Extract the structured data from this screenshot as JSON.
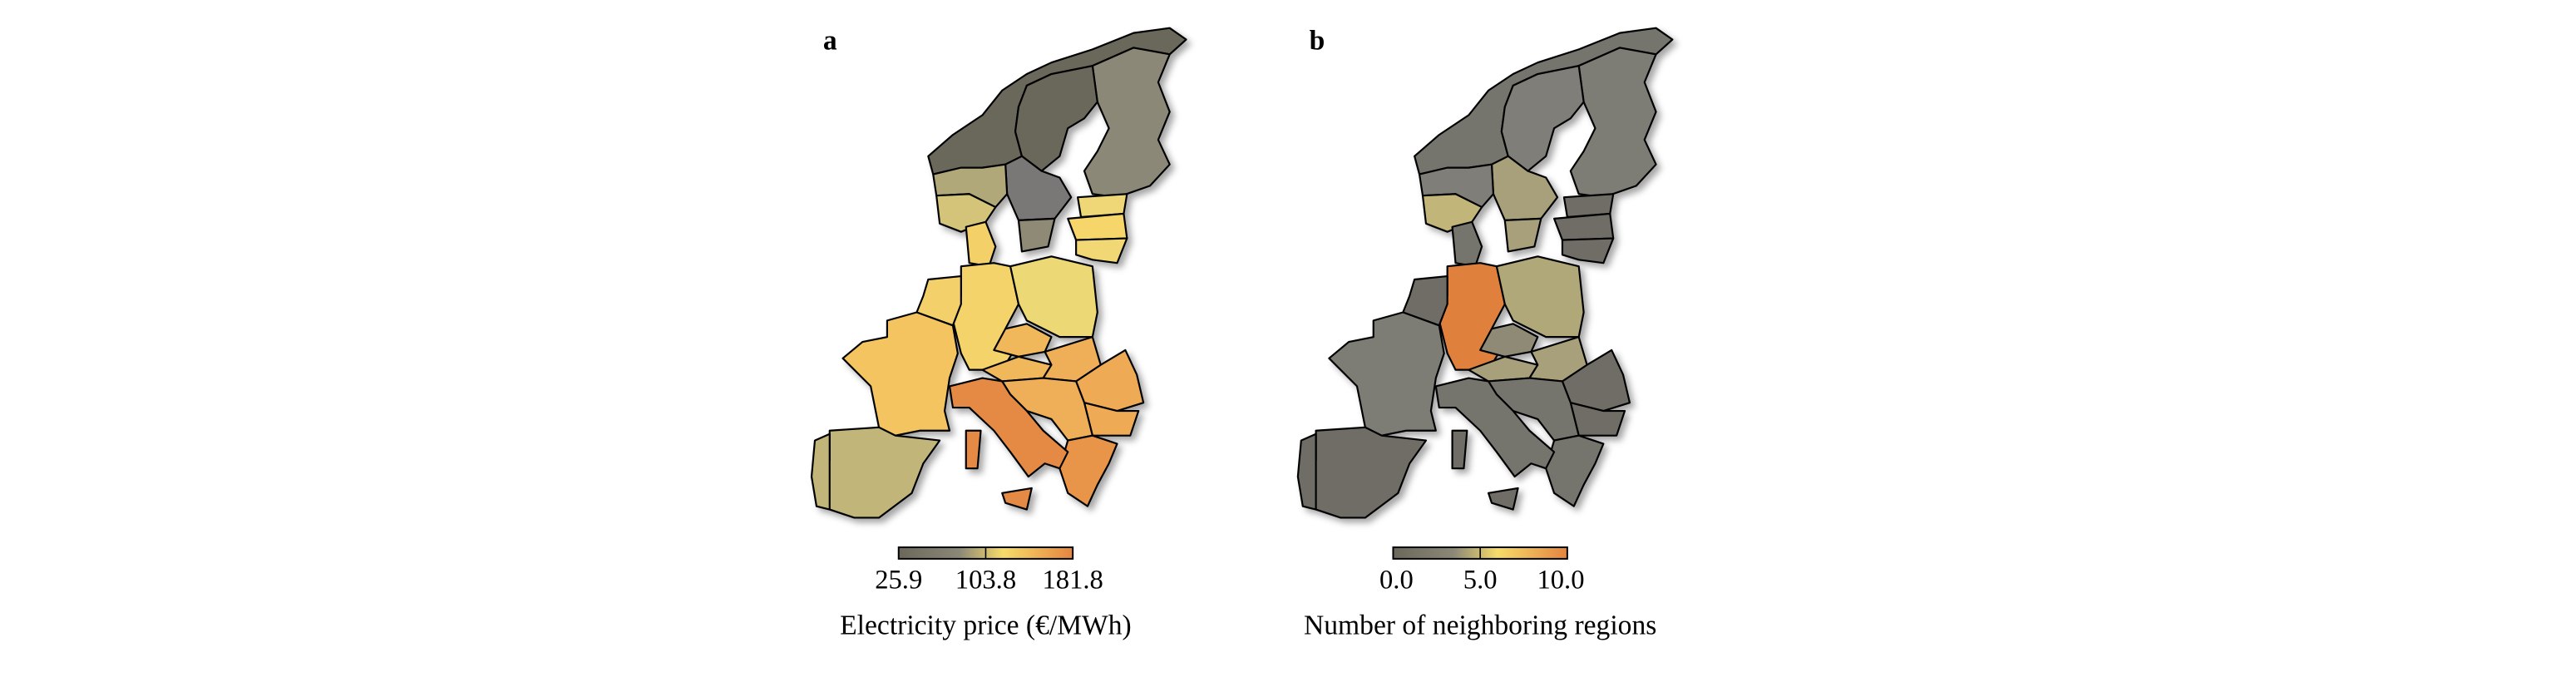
{
  "panels": [
    {
      "letter": "a",
      "colorbar": {
        "ticks": [
          "25.9",
          "103.8",
          "181.8"
        ],
        "label": "Electricity price (€/MWh)",
        "colors": [
          "#6b675a",
          "#f7dc6a",
          "#e5853f"
        ]
      },
      "region_colors": {
        "norway-north": "#6b675a",
        "sweden-north": "#6b675a",
        "finland": "#8c8878",
        "sweden-central": "#7a7876",
        "sweden-south": "#8f8a76",
        "norway-central": "#b0a878",
        "norway-south": "#d4c47a",
        "estonia": "#efd777",
        "latvia": "#f6d66a",
        "lithuania": "#f2d874",
        "denmark": "#f3d068",
        "germany": "#f4d46b",
        "poland": "#ecd874",
        "benelux": "#f4d06a",
        "france": "#f3c461",
        "czechia": "#f0b85a",
        "austria": "#f0b85a",
        "hungary": "#efae58",
        "romania": "#efaa57",
        "bulgaria": "#efaa57",
        "balkans": "#efae58",
        "greece": "#e99548",
        "italy": "#e58a45",
        "sicily": "#e58a45",
        "sardinia": "#e58a45",
        "spain": "#c2b57a",
        "portugal": "#c2b57a"
      }
    },
    {
      "letter": "b",
      "colorbar": {
        "ticks": [
          "0.0",
          "5.0",
          "10.0"
        ],
        "label": "Number of neighboring regions",
        "colors": [
          "#6b675a",
          "#f7dc6a",
          "#e5853f"
        ]
      },
      "region_colors": {
        "norway-north": "#76746d",
        "sweden-north": "#807e78",
        "finland": "#7d7b75",
        "sweden-central": "#a8a07a",
        "sweden-south": "#a8a07a",
        "norway-central": "#807e78",
        "norway-south": "#c2b57a",
        "estonia": "#6f6d66",
        "latvia": "#6f6d66",
        "lithuania": "#6f6d66",
        "denmark": "#76746d",
        "germany": "#e0803e",
        "poland": "#b0a878",
        "benelux": "#6f6d66",
        "france": "#7d7b75",
        "czechia": "#8f8a76",
        "austria": "#a8a07a",
        "hungary": "#a8a07a",
        "romania": "#6f6d66",
        "bulgaria": "#6f6d66",
        "balkans": "#76746d",
        "greece": "#76746d",
        "italy": "#76746d",
        "sicily": "#6f6d66",
        "sardinia": "#6f6d66",
        "spain": "#6f6d66",
        "portugal": "#6f6d66"
      }
    }
  ]
}
